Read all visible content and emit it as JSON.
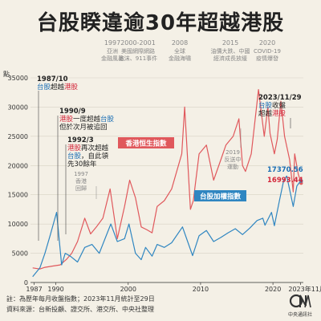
{
  "title": "台股睽違逾30年超越港股",
  "events": [
    {
      "year": "1997",
      "lines": [
        "亞洲",
        "金融風暴"
      ]
    },
    {
      "year": "2000-2001",
      "lines": [
        "美國網際網路",
        "泡沫、911事件"
      ]
    },
    {
      "year": "2008",
      "lines": [
        "全球",
        "金融海嘯"
      ]
    },
    {
      "year": "2015",
      "lines": [
        "油價大跌、中國",
        "經濟成長放緩"
      ]
    },
    {
      "year": "2020",
      "lines": [
        "COVID-19",
        "疫情爆發"
      ]
    }
  ],
  "annotations": {
    "a1987": {
      "date": "1987/10",
      "tw": "台股",
      "mid": "超越",
      "hk": "港股"
    },
    "a1990": {
      "date": "1990/9",
      "hk": "港股",
      "mid": "一度超越",
      "tw": "台股",
      "line2": "但於次月被追回"
    },
    "a1992": {
      "date": "1992/3",
      "hk": "港股",
      "mid1": "再次超越",
      "tw": "台股",
      "mid2": "，自此領",
      "line3": "先30餘年"
    },
    "a1997": {
      "lines": [
        "1997",
        "香港",
        "回歸"
      ]
    },
    "a2019": {
      "lines": [
        "2019",
        "反送中",
        "運動"
      ]
    },
    "a2023": {
      "date": "2023/11/29",
      "tw": "台股",
      "mid": "收盤",
      "line2a": "超越",
      "hk": "港股"
    }
  },
  "labels": {
    "hk_index": "香港恒生指數",
    "tw_index": "台股加權指數",
    "last_tw": "17370.56",
    "last_hk": "16993.44"
  },
  "footer": {
    "note": "註：為歷年每月收盤指數；2023年11月統計至29日",
    "source": "資料來源：台新投顧、證交所、港交所、中央社整理"
  },
  "logo": {
    "mark": "CNA",
    "text": "中央通訊社"
  },
  "colors": {
    "tw": "#2f86c1",
    "hk": "#e0585c",
    "accent_red": "#d3263a",
    "accent_blue": "#1b6fb5"
  },
  "chart_data": {
    "type": "line",
    "yunit": "點",
    "ylim": [
      0,
      35000
    ],
    "yticks": [
      0,
      5000,
      10000,
      15000,
      20000,
      25000,
      30000,
      35000
    ],
    "xlim": [
      1986.5,
      2024.2
    ],
    "xticks": [
      "1987",
      "1990",
      "2000",
      "2010",
      "2020",
      "2023年11月"
    ],
    "xtick_values": [
      1987,
      1990,
      2000,
      2010,
      2020,
      2023.83
    ],
    "grid": true,
    "series": [
      {
        "name": "香港恒生指數",
        "color": "#e0585c",
        "points": [
          [
            1986.8,
            2500
          ],
          [
            1987.8,
            2300
          ],
          [
            1988.5,
            2600
          ],
          [
            1989.5,
            2800
          ],
          [
            1990.6,
            3000
          ],
          [
            1991.5,
            4000
          ],
          [
            1992.2,
            5000
          ],
          [
            1993.0,
            7000
          ],
          [
            1994.0,
            11000
          ],
          [
            1994.8,
            8300
          ],
          [
            1995.6,
            9500
          ],
          [
            1996.5,
            11000
          ],
          [
            1997.5,
            16000
          ],
          [
            1998.5,
            7500
          ],
          [
            1999.5,
            13000
          ],
          [
            2000.2,
            17500
          ],
          [
            2001.0,
            14500
          ],
          [
            2001.8,
            9500
          ],
          [
            2002.6,
            9000
          ],
          [
            2003.3,
            8500
          ],
          [
            2004.0,
            13000
          ],
          [
            2005.0,
            14000
          ],
          [
            2006.0,
            16000
          ],
          [
            2007.4,
            22000
          ],
          [
            2007.8,
            30000
          ],
          [
            2008.6,
            12500
          ],
          [
            2009.0,
            14000
          ],
          [
            2009.8,
            22000
          ],
          [
            2010.8,
            23500
          ],
          [
            2011.8,
            17500
          ],
          [
            2012.8,
            21000
          ],
          [
            2013.5,
            23500
          ],
          [
            2014.5,
            25000
          ],
          [
            2015.3,
            28000
          ],
          [
            2015.8,
            20000
          ],
          [
            2016.2,
            19000
          ],
          [
            2017.0,
            22000
          ],
          [
            2018.0,
            33000
          ],
          [
            2018.8,
            25000
          ],
          [
            2019.3,
            30000
          ],
          [
            2019.6,
            25500
          ],
          [
            2020.2,
            22000
          ],
          [
            2020.6,
            24500
          ],
          [
            2021.1,
            31000
          ],
          [
            2021.6,
            25000
          ],
          [
            2022.3,
            21000
          ],
          [
            2022.8,
            15500
          ],
          [
            2023.0,
            22000
          ],
          [
            2023.5,
            18500
          ],
          [
            2023.9,
            16993.44
          ]
        ]
      },
      {
        "name": "台股加權指數",
        "color": "#2f86c1",
        "points": [
          [
            1986.8,
            1000
          ],
          [
            1987.8,
            2500
          ],
          [
            1988.5,
            5000
          ],
          [
            1989.2,
            8000
          ],
          [
            1990.1,
            12000
          ],
          [
            1990.8,
            3000
          ],
          [
            1991.3,
            5000
          ],
          [
            1992.0,
            4500
          ],
          [
            1993.0,
            3500
          ],
          [
            1994.0,
            6000
          ],
          [
            1995.0,
            6500
          ],
          [
            1996.0,
            5000
          ],
          [
            1997.6,
            10000
          ],
          [
            1998.5,
            7000
          ],
          [
            1999.5,
            7500
          ],
          [
            2000.1,
            10000
          ],
          [
            2001.0,
            5000
          ],
          [
            2001.8,
            3900
          ],
          [
            2002.4,
            6000
          ],
          [
            2003.3,
            4500
          ],
          [
            2004.0,
            6500
          ],
          [
            2005.0,
            6000
          ],
          [
            2006.0,
            6800
          ],
          [
            2007.5,
            9500
          ],
          [
            2008.9,
            4600
          ],
          [
            2009.8,
            8000
          ],
          [
            2010.8,
            8900
          ],
          [
            2011.8,
            7000
          ],
          [
            2012.8,
            7700
          ],
          [
            2013.8,
            8500
          ],
          [
            2014.8,
            9200
          ],
          [
            2015.8,
            8200
          ],
          [
            2016.8,
            9300
          ],
          [
            2017.8,
            10600
          ],
          [
            2018.6,
            11000
          ],
          [
            2018.9,
            9800
          ],
          [
            2019.8,
            12000
          ],
          [
            2020.2,
            9700
          ],
          [
            2020.9,
            14000
          ],
          [
            2021.5,
            17500
          ],
          [
            2021.9,
            18200
          ],
          [
            2022.8,
            13000
          ],
          [
            2023.3,
            16500
          ],
          [
            2023.6,
            17000
          ],
          [
            2023.9,
            17370.56
          ]
        ]
      }
    ]
  }
}
